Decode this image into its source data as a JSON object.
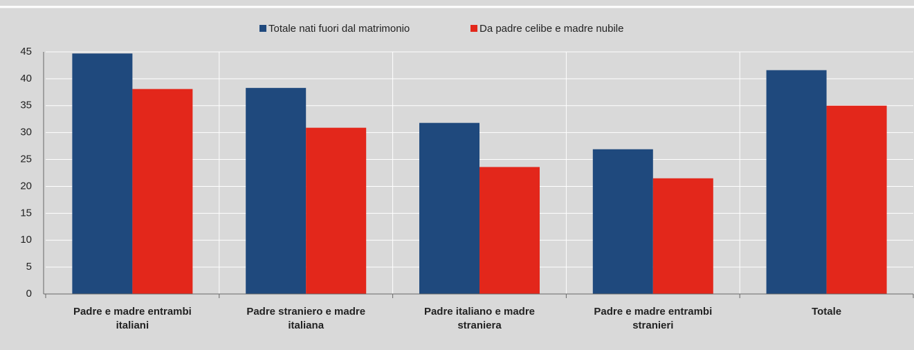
{
  "chart_data": {
    "type": "bar",
    "categories": [
      "Padre e madre entrambi italiani",
      "Padre straniero e madre italiana",
      "Padre italiano e madre straniera",
      "Padre e madre entrambi stranieri",
      "Totale"
    ],
    "series": [
      {
        "name": "Totale nati fuori dal matrimonio",
        "color": "#1f497d",
        "values": [
          44.7,
          38.3,
          31.8,
          26.9,
          41.6
        ]
      },
      {
        "name": "Da padre celibe e madre nubile",
        "color": "#e3271b",
        "values": [
          38.1,
          30.9,
          23.6,
          21.5,
          35.0
        ]
      }
    ],
    "ylim": [
      0,
      45
    ],
    "yticks": [
      0,
      5,
      10,
      15,
      20,
      25,
      30,
      35,
      40,
      45
    ],
    "grid": true,
    "legend": "top"
  }
}
